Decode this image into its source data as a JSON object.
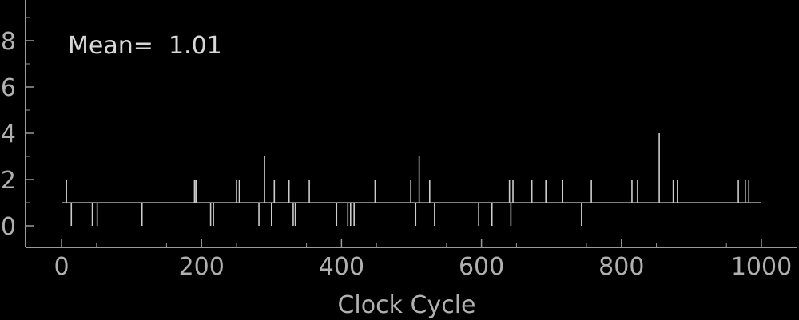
{
  "chart_data": {
    "type": "line",
    "title": "",
    "xlabel": "Clock Cycle",
    "ylabel": "",
    "annotation": "Mean=  1.01",
    "xlim": [
      -50,
      1050
    ],
    "ylim": [
      -1,
      10
    ],
    "xticks": [
      0,
      200,
      400,
      600,
      800,
      1000
    ],
    "yticks": [
      0,
      2,
      4,
      6,
      8
    ],
    "xtick_labels": [
      "0",
      "200",
      "400",
      "600",
      "800",
      "1000"
    ],
    "ytick_labels": [
      "0",
      "2",
      "4",
      "6",
      "8"
    ],
    "grid": false,
    "line_color": "#cccccc",
    "axis_color": "#9a9a9a",
    "background": "#000000",
    "series": [
      {
        "baseline": 1,
        "x_range": [
          0,
          1000
        ],
        "spikes": [
          {
            "x": 7,
            "y": 2
          },
          {
            "x": 14,
            "y": 0
          },
          {
            "x": 44,
            "y": 0
          },
          {
            "x": 51,
            "y": 0
          },
          {
            "x": 115,
            "y": 0
          },
          {
            "x": 190,
            "y": 2
          },
          {
            "x": 192,
            "y": 2
          },
          {
            "x": 213,
            "y": 0
          },
          {
            "x": 217,
            "y": 0
          },
          {
            "x": 250,
            "y": 2
          },
          {
            "x": 254,
            "y": 2
          },
          {
            "x": 282,
            "y": 0
          },
          {
            "x": 290,
            "y": 3
          },
          {
            "x": 300,
            "y": 0
          },
          {
            "x": 304,
            "y": 2
          },
          {
            "x": 325,
            "y": 2
          },
          {
            "x": 331,
            "y": 0
          },
          {
            "x": 334,
            "y": 0
          },
          {
            "x": 354,
            "y": 2
          },
          {
            "x": 393,
            "y": 0
          },
          {
            "x": 409,
            "y": 0
          },
          {
            "x": 413,
            "y": 0
          },
          {
            "x": 418,
            "y": 0
          },
          {
            "x": 448,
            "y": 2
          },
          {
            "x": 499,
            "y": 2
          },
          {
            "x": 506,
            "y": 0
          },
          {
            "x": 511,
            "y": 3
          },
          {
            "x": 526,
            "y": 2
          },
          {
            "x": 533,
            "y": 0
          },
          {
            "x": 596,
            "y": 0
          },
          {
            "x": 615,
            "y": 0
          },
          {
            "x": 640,
            "y": 2
          },
          {
            "x": 642,
            "y": 0
          },
          {
            "x": 645,
            "y": 2
          },
          {
            "x": 672,
            "y": 2
          },
          {
            "x": 692,
            "y": 2
          },
          {
            "x": 716,
            "y": 2
          },
          {
            "x": 743,
            "y": 0
          },
          {
            "x": 757,
            "y": 2
          },
          {
            "x": 815,
            "y": 2
          },
          {
            "x": 823,
            "y": 2
          },
          {
            "x": 854,
            "y": 4
          },
          {
            "x": 874,
            "y": 2
          },
          {
            "x": 880,
            "y": 2
          },
          {
            "x": 967,
            "y": 2
          },
          {
            "x": 977,
            "y": 2
          },
          {
            "x": 982,
            "y": 2
          }
        ]
      }
    ]
  }
}
